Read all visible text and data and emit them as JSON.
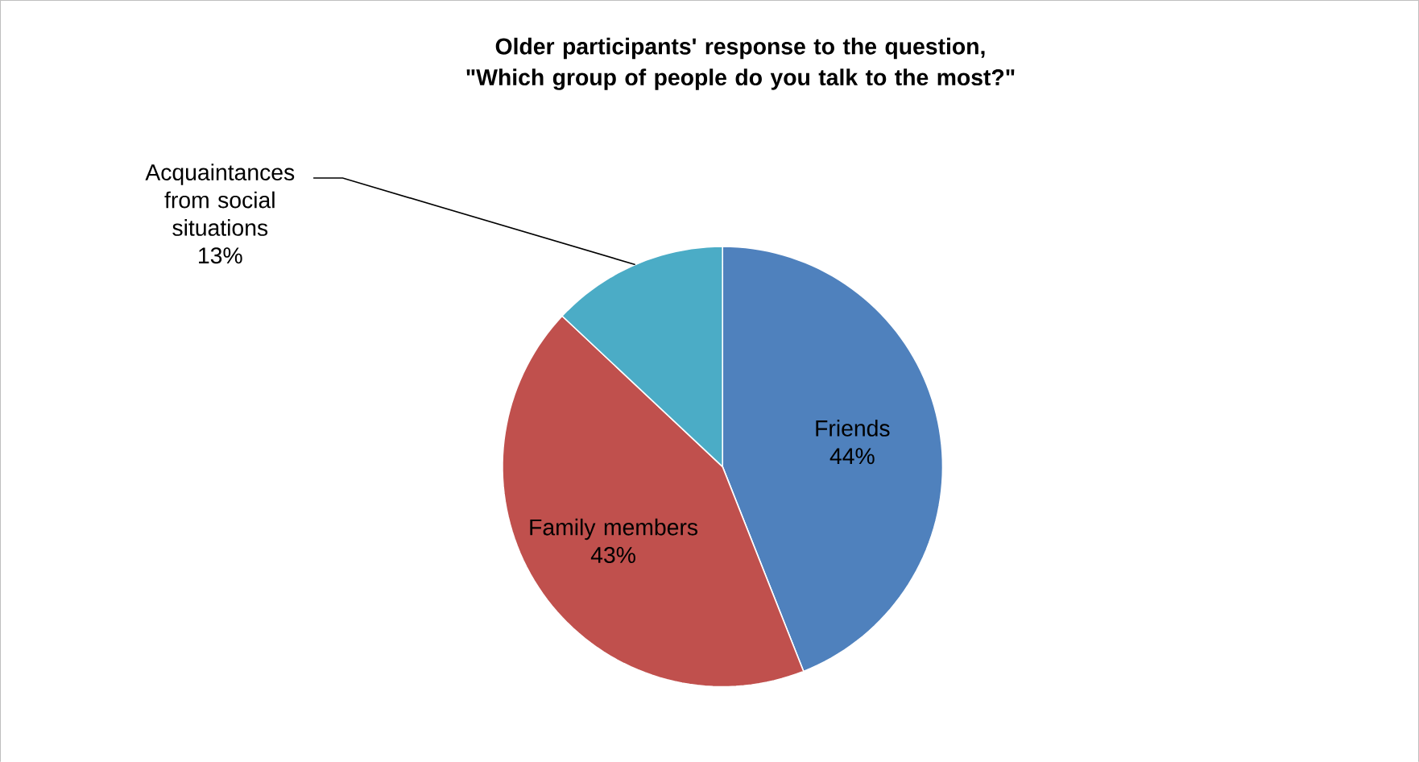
{
  "chart_data": {
    "type": "pie",
    "title": "Older participants' response to the question, \"Which group of people do you talk to the most?\"",
    "categories": [
      "Friends",
      "Family members",
      "Acquaintances from social situations"
    ],
    "values": [
      44,
      43,
      13
    ],
    "value_labels": [
      "44%",
      "43%",
      "13%"
    ],
    "colors": [
      "#4f81bd",
      "#c0504d",
      "#4bacc6"
    ],
    "legend": false
  }
}
